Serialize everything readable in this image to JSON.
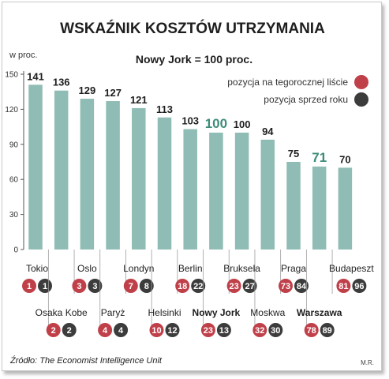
{
  "chart_data": {
    "type": "bar",
    "title": "WSKAŹNIK KOSZTÓW UTRZYMANIA",
    "subtitle": "Nowy Jork = 100 proc.",
    "ylabel": "w proc.",
    "ylim": [
      0,
      150
    ],
    "yticks": [
      0,
      30,
      60,
      90,
      120,
      150
    ],
    "grid": false,
    "categories": [
      "Tokio",
      "Osaka Kobe",
      "Oslo",
      "Paryż",
      "Londyn",
      "Helsinki",
      "Berlin",
      "Nowy Jork",
      "Bruksela",
      "Moskwa",
      "Praga",
      "Warszawa",
      "Budapeszt"
    ],
    "values": [
      141,
      136,
      129,
      127,
      121,
      113,
      103,
      100,
      100,
      94,
      75,
      71,
      70
    ],
    "value_labels": [
      "141",
      "136",
      "129",
      "127",
      "121",
      "113",
      "103",
      "100",
      "100",
      "94",
      "75",
      "71",
      "70"
    ],
    "highlighted_categories": [
      "Nowy Jork",
      "Warszawa"
    ],
    "rank_current": [
      "1",
      "2",
      "3",
      "4",
      "7",
      "10",
      "18",
      "23",
      "23",
      "32",
      "73",
      "78",
      "81"
    ],
    "rank_previous": [
      "1",
      "2",
      "3",
      "4",
      "8",
      "12",
      "22",
      "13",
      "27",
      "30",
      "84",
      "89",
      "96"
    ],
    "legend": {
      "placement": "top-right",
      "items": [
        {
          "label": "pozycja na tegorocznej liście",
          "color": "#c0404a"
        },
        {
          "label": "pozycja sprzed roku",
          "color": "#3c3c3c"
        }
      ]
    },
    "source": "Źródło: The Economist Intelligence Unit",
    "credit": "M.R.",
    "colors": {
      "bar": "#8fbcb4",
      "highlight_value": "#3d8c7a",
      "rank_current": "#c0404a",
      "rank_previous": "#3c3c3c",
      "separator": "#9e9e9e"
    }
  }
}
